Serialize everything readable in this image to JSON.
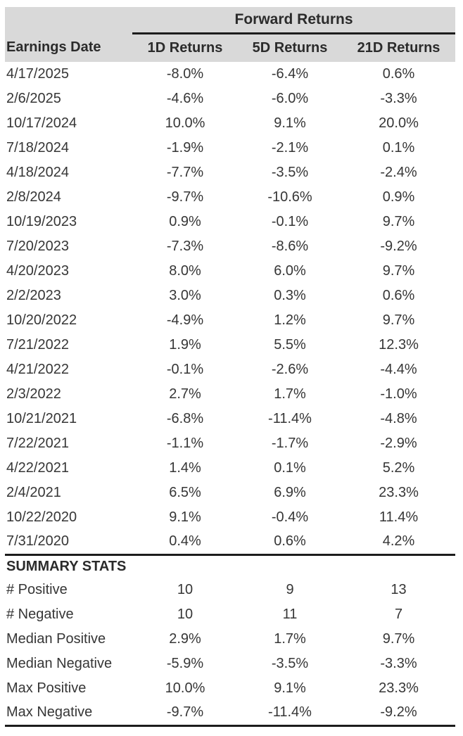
{
  "colors": {
    "page_bg": "#ffffff",
    "header_bg": "#d9d9d9",
    "text": "#363636",
    "heading_text": "#2b2b2b",
    "rule": "#1c1c1c"
  },
  "chart_data": {
    "type": "table",
    "title": "Forward Returns",
    "group_header": "Forward Returns",
    "columns": [
      "Earnings Date",
      "1D Returns",
      "5D Returns",
      "21D Returns"
    ],
    "rows": [
      [
        "4/17/2025",
        "-8.0%",
        "-6.4%",
        "0.6%"
      ],
      [
        "2/6/2025",
        "-4.6%",
        "-6.0%",
        "-3.3%"
      ],
      [
        "10/17/2024",
        "10.0%",
        "9.1%",
        "20.0%"
      ],
      [
        "7/18/2024",
        "-1.9%",
        "-2.1%",
        "0.1%"
      ],
      [
        "4/18/2024",
        "-7.7%",
        "-3.5%",
        "-2.4%"
      ],
      [
        "2/8/2024",
        "-9.7%",
        "-10.6%",
        "0.9%"
      ],
      [
        "10/19/2023",
        "0.9%",
        "-0.1%",
        "9.7%"
      ],
      [
        "7/20/2023",
        "-7.3%",
        "-8.6%",
        "-9.2%"
      ],
      [
        "4/20/2023",
        "8.0%",
        "6.0%",
        "9.7%"
      ],
      [
        "2/2/2023",
        "3.0%",
        "0.3%",
        "0.6%"
      ],
      [
        "10/20/2022",
        "-4.9%",
        "1.2%",
        "9.7%"
      ],
      [
        "7/21/2022",
        "1.9%",
        "5.5%",
        "12.3%"
      ],
      [
        "4/21/2022",
        "-0.1%",
        "-2.6%",
        "-4.4%"
      ],
      [
        "2/3/2022",
        "2.7%",
        "1.7%",
        "-1.0%"
      ],
      [
        "10/21/2021",
        "-6.8%",
        "-11.4%",
        "-4.8%"
      ],
      [
        "7/22/2021",
        "-1.1%",
        "-1.7%",
        "-2.9%"
      ],
      [
        "4/22/2021",
        "1.4%",
        "0.1%",
        "5.2%"
      ],
      [
        "2/4/2021",
        "6.5%",
        "6.9%",
        "23.3%"
      ],
      [
        "10/22/2020",
        "9.1%",
        "-0.4%",
        "11.4%"
      ],
      [
        "7/31/2020",
        "0.4%",
        "0.6%",
        "4.2%"
      ]
    ],
    "summary_title": "SUMMARY STATS",
    "summary_rows": [
      [
        "# Positive",
        "10",
        "9",
        "13"
      ],
      [
        "# Negative",
        "10",
        "11",
        "7"
      ],
      [
        "Median Positive",
        "2.9%",
        "1.7%",
        "9.7%"
      ],
      [
        "Median Negative",
        "-5.9%",
        "-3.5%",
        "-3.3%"
      ],
      [
        "Max Positive",
        "10.0%",
        "9.1%",
        "23.3%"
      ],
      [
        "Max Negative",
        "-9.7%",
        "-11.4%",
        "-9.2%"
      ]
    ],
    "layout": {
      "column_alignments": [
        "left",
        "center",
        "center",
        "center"
      ],
      "grid": "off",
      "header_background": "#d9d9d9"
    }
  }
}
